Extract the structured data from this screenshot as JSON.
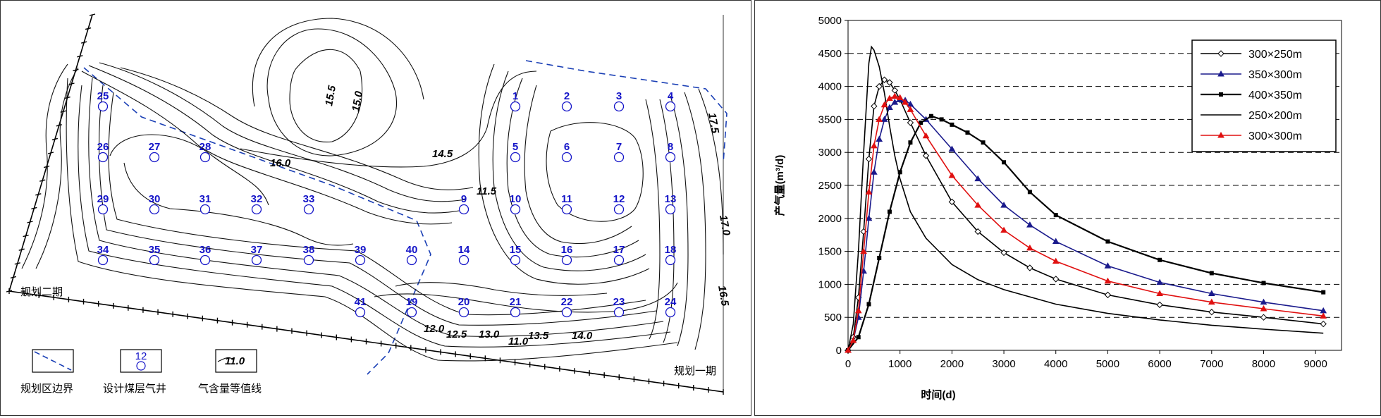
{
  "chart_data": [
    {
      "type": "contour map",
      "well_label_color": "#1414c8",
      "boundary_color": "#1a3fb5",
      "contours": [
        {
          "label": "11.0"
        },
        {
          "label": "11.5"
        },
        {
          "label": "12.0"
        },
        {
          "label": "12.5"
        },
        {
          "label": "13.0"
        },
        {
          "label": "13.5"
        },
        {
          "label": "14.0"
        },
        {
          "label": "14.5"
        },
        {
          "label": "15.0"
        },
        {
          "label": "15.5"
        },
        {
          "label": "16.0"
        },
        {
          "label": "16.5"
        },
        {
          "label": "17.0"
        },
        {
          "label": "17.5"
        }
      ],
      "wells": [
        {
          "id": "1"
        },
        {
          "id": "2"
        },
        {
          "id": "3"
        },
        {
          "id": "4"
        },
        {
          "id": "5"
        },
        {
          "id": "6"
        },
        {
          "id": "7"
        },
        {
          "id": "8"
        },
        {
          "id": "9"
        },
        {
          "id": "10"
        },
        {
          "id": "11"
        },
        {
          "id": "12"
        },
        {
          "id": "13"
        },
        {
          "id": "14"
        },
        {
          "id": "15"
        },
        {
          "id": "16"
        },
        {
          "id": "17"
        },
        {
          "id": "18"
        },
        {
          "id": "19"
        },
        {
          "id": "20"
        },
        {
          "id": "21"
        },
        {
          "id": "22"
        },
        {
          "id": "23"
        },
        {
          "id": "24"
        },
        {
          "id": "25"
        },
        {
          "id": "26"
        },
        {
          "id": "27"
        },
        {
          "id": "28"
        },
        {
          "id": "29"
        },
        {
          "id": "30"
        },
        {
          "id": "31"
        },
        {
          "id": "32"
        },
        {
          "id": "33"
        },
        {
          "id": "34"
        },
        {
          "id": "35"
        },
        {
          "id": "36"
        },
        {
          "id": "37"
        },
        {
          "id": "38"
        },
        {
          "id": "39"
        },
        {
          "id": "40"
        },
        {
          "id": "41"
        }
      ],
      "region_labels": {
        "phase2": "规划二期",
        "phase1": "规划一期"
      },
      "legend": {
        "boundary": "规划区边界",
        "well": "设计煤层气井",
        "well_sample": "12",
        "contour": "气含量等值线",
        "contour_sample": "11.0"
      }
    },
    {
      "type": "line",
      "xlabel": "时间(d)",
      "ylabel": "产气量(m³/d)",
      "xlim": [
        0,
        9500
      ],
      "ylim": [
        0,
        5000
      ],
      "xticks": [
        0,
        1000,
        2000,
        3000,
        4000,
        5000,
        6000,
        7000,
        8000,
        9000
      ],
      "yticks": [
        0,
        500,
        1000,
        1500,
        2000,
        2500,
        3000,
        3500,
        4000,
        4500,
        5000
      ],
      "grid": "horizontal dashed",
      "legend_position": "top-right",
      "series": [
        {
          "name": "300×250m",
          "color": "#000000",
          "marker": "diamond-open",
          "points": [
            [
              0,
              0
            ],
            [
              100,
              200
            ],
            [
              200,
              800
            ],
            [
              300,
              1800
            ],
            [
              400,
              2900
            ],
            [
              500,
              3700
            ],
            [
              600,
              4000
            ],
            [
              700,
              4100
            ],
            [
              800,
              4060
            ],
            [
              900,
              3940
            ],
            [
              1000,
              3800
            ],
            [
              1200,
              3450
            ],
            [
              1500,
              2950
            ],
            [
              2000,
              2250
            ],
            [
              2500,
              1800
            ],
            [
              3000,
              1480
            ],
            [
              3500,
              1250
            ],
            [
              4000,
              1080
            ],
            [
              5000,
              840
            ],
            [
              6000,
              690
            ],
            [
              7000,
              580
            ],
            [
              8000,
              500
            ],
            [
              9150,
              400
            ]
          ]
        },
        {
          "name": "350×300m",
          "color": "#1a1a8c",
          "marker": "triangle",
          "points": [
            [
              0,
              0
            ],
            [
              100,
              150
            ],
            [
              200,
              500
            ],
            [
              300,
              1200
            ],
            [
              400,
              2000
            ],
            [
              500,
              2700
            ],
            [
              600,
              3200
            ],
            [
              700,
              3500
            ],
            [
              800,
              3680
            ],
            [
              900,
              3760
            ],
            [
              1000,
              3800
            ],
            [
              1100,
              3790
            ],
            [
              1200,
              3730
            ],
            [
              1500,
              3500
            ],
            [
              2000,
              3050
            ],
            [
              2500,
              2600
            ],
            [
              3000,
              2200
            ],
            [
              3500,
              1900
            ],
            [
              4000,
              1650
            ],
            [
              5000,
              1280
            ],
            [
              6000,
              1030
            ],
            [
              7000,
              860
            ],
            [
              8000,
              730
            ],
            [
              9150,
              600
            ]
          ]
        },
        {
          "name": "400×350m",
          "color": "#000000",
          "marker": "square-filled",
          "points": [
            [
              0,
              0
            ],
            [
              200,
              200
            ],
            [
              400,
              700
            ],
            [
              600,
              1400
            ],
            [
              800,
              2100
            ],
            [
              1000,
              2700
            ],
            [
              1200,
              3150
            ],
            [
              1400,
              3450
            ],
            [
              1600,
              3550
            ],
            [
              1800,
              3500
            ],
            [
              2000,
              3420
            ],
            [
              2300,
              3300
            ],
            [
              2600,
              3150
            ],
            [
              3000,
              2850
            ],
            [
              3500,
              2400
            ],
            [
              4000,
              2050
            ],
            [
              5000,
              1650
            ],
            [
              6000,
              1370
            ],
            [
              7000,
              1170
            ],
            [
              8000,
              1020
            ],
            [
              9150,
              880
            ]
          ]
        },
        {
          "name": "250×200m",
          "color": "#000000",
          "marker": "none",
          "points": [
            [
              0,
              0
            ],
            [
              100,
              400
            ],
            [
              200,
              1500
            ],
            [
              300,
              3000
            ],
            [
              400,
              4350
            ],
            [
              450,
              4600
            ],
            [
              500,
              4550
            ],
            [
              600,
              4300
            ],
            [
              700,
              3900
            ],
            [
              800,
              3400
            ],
            [
              900,
              2950
            ],
            [
              1000,
              2600
            ],
            [
              1200,
              2100
            ],
            [
              1500,
              1700
            ],
            [
              2000,
              1300
            ],
            [
              2500,
              1070
            ],
            [
              3000,
              920
            ],
            [
              4000,
              700
            ],
            [
              5000,
              560
            ],
            [
              6000,
              460
            ],
            [
              7000,
              380
            ],
            [
              8000,
              320
            ],
            [
              9150,
              260
            ]
          ]
        },
        {
          "name": "300×300m",
          "color": "#e01010",
          "marker": "triangle",
          "points": [
            [
              0,
              0
            ],
            [
              100,
              150
            ],
            [
              200,
              600
            ],
            [
              300,
              1500
            ],
            [
              400,
              2400
            ],
            [
              500,
              3100
            ],
            [
              600,
              3500
            ],
            [
              700,
              3720
            ],
            [
              800,
              3820
            ],
            [
              900,
              3850
            ],
            [
              1000,
              3830
            ],
            [
              1100,
              3760
            ],
            [
              1200,
              3650
            ],
            [
              1500,
              3250
            ],
            [
              2000,
              2650
            ],
            [
              2500,
              2200
            ],
            [
              3000,
              1820
            ],
            [
              3500,
              1550
            ],
            [
              4000,
              1350
            ],
            [
              5000,
              1050
            ],
            [
              6000,
              860
            ],
            [
              7000,
              730
            ],
            [
              8000,
              630
            ],
            [
              9150,
              520
            ]
          ]
        }
      ]
    }
  ]
}
